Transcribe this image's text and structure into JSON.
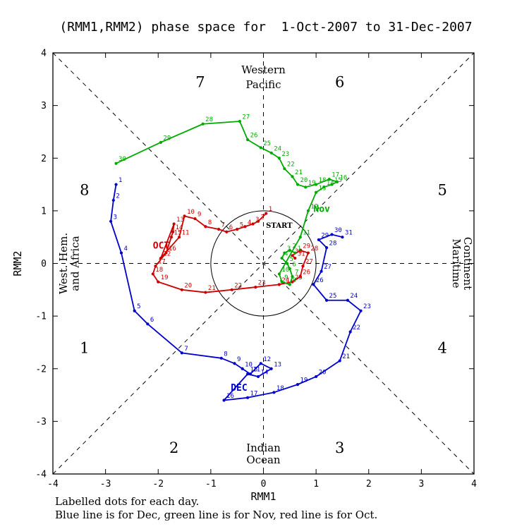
{
  "footer": {
    "line1": "Labelled dots for each day.",
    "line2": "Blue line is for Dec, green line is for Nov, red line is for Oct."
  },
  "chart_data": {
    "type": "line",
    "title": "(RMM1,RMM2) phase space for  1-Oct-2007 to 31-Dec-2007",
    "xlabel": "RMM1",
    "ylabel": "RMM2",
    "xlim": [
      -4,
      4
    ],
    "ylim": [
      -4,
      4
    ],
    "xticks": [
      -4,
      -3,
      -2,
      -1,
      0,
      1,
      2,
      3,
      4
    ],
    "yticks": [
      -4,
      -3,
      -2,
      -1,
      0,
      1,
      2,
      3,
      4
    ],
    "grid": "dashed-phase-guides",
    "unit_circle_radius": 1,
    "start": {
      "text": "START",
      "x": 0.3,
      "y": 0.68
    },
    "phase_labels": [
      {
        "text": "1",
        "x": -3.4,
        "y": -1.6
      },
      {
        "text": "2",
        "x": -1.7,
        "y": -3.5
      },
      {
        "text": "3",
        "x": 1.45,
        "y": -3.5
      },
      {
        "text": "4",
        "x": 3.4,
        "y": -1.6
      },
      {
        "text": "5",
        "x": 3.4,
        "y": 1.4
      },
      {
        "text": "6",
        "x": 1.45,
        "y": 3.45
      },
      {
        "text": "7",
        "x": -1.2,
        "y": 3.45
      },
      {
        "text": "8",
        "x": -3.4,
        "y": 1.4
      }
    ],
    "region_labels": [
      {
        "text": "Western",
        "x": 0,
        "y": 3.68,
        "rotate": 0
      },
      {
        "text": "Pacific",
        "x": 0,
        "y": 3.4,
        "rotate": 0
      },
      {
        "text": "Indian",
        "x": 0,
        "y": -3.5,
        "rotate": 0
      },
      {
        "text": "Ocean",
        "x": 0,
        "y": -3.73,
        "rotate": 0
      },
      {
        "text": "Maritime",
        "x": 3.67,
        "y": 0,
        "rotate": 90
      },
      {
        "text": "Continent",
        "x": 3.88,
        "y": 0,
        "rotate": 90
      },
      {
        "text": "West. Hem.",
        "x": -3.8,
        "y": 0,
        "rotate": -90
      },
      {
        "text": "and Africa",
        "x": -3.58,
        "y": 0,
        "rotate": -90
      }
    ],
    "series": [
      {
        "name": "Oct",
        "color": "#cc0000",
        "label": {
          "text": "OCT",
          "x": -2.1,
          "y": 0.28
        },
        "points": [
          [
            1,
            0.05,
            0.95
          ],
          [
            2,
            -0.1,
            0.8
          ],
          [
            3,
            -0.2,
            0.75
          ],
          [
            4,
            -0.35,
            0.7
          ],
          [
            5,
            -0.5,
            0.65
          ],
          [
            6,
            -0.7,
            0.6
          ],
          [
            7,
            -0.85,
            0.65
          ],
          [
            8,
            -1.1,
            0.7
          ],
          [
            9,
            -1.3,
            0.85
          ],
          [
            10,
            -1.5,
            0.9
          ],
          [
            11,
            -1.6,
            0.5
          ],
          [
            12,
            -1.95,
            0.1
          ],
          [
            13,
            -1.7,
            0.75
          ],
          [
            14,
            -1.72,
            0.6
          ],
          [
            15,
            -1.75,
            0.5
          ],
          [
            16,
            -1.85,
            0.2
          ],
          [
            17,
            -2.05,
            -0.05
          ],
          [
            18,
            -2.1,
            -0.2
          ],
          [
            19,
            -2.0,
            -0.35
          ],
          [
            20,
            -1.55,
            -0.5
          ],
          [
            21,
            -1.1,
            -0.55
          ],
          [
            22,
            -0.6,
            -0.5
          ],
          [
            23,
            -0.15,
            -0.45
          ],
          [
            24,
            0.3,
            -0.4
          ],
          [
            25,
            0.55,
            -0.35
          ],
          [
            26,
            0.7,
            -0.25
          ],
          [
            27,
            0.75,
            -0.05
          ],
          [
            28,
            0.85,
            0.2
          ],
          [
            29,
            0.7,
            0.25
          ],
          [
            30,
            0.55,
            0.15
          ],
          [
            31,
            0.6,
            0.1
          ]
        ]
      },
      {
        "name": "Nov",
        "color": "#00aa00",
        "label": {
          "text": "Nov",
          "x": 0.95,
          "y": 0.98
        },
        "points": [
          [
            1,
            0.6,
            0.2
          ],
          [
            2,
            0.5,
            0.25
          ],
          [
            3,
            0.4,
            0.2
          ],
          [
            4,
            0.35,
            0.1
          ],
          [
            5,
            0.45,
            0.0
          ],
          [
            6,
            0.5,
            -0.1
          ],
          [
            7,
            0.55,
            -0.25
          ],
          [
            8,
            0.5,
            -0.4
          ],
          [
            9,
            0.35,
            -0.35
          ],
          [
            10,
            0.3,
            -0.2
          ],
          [
            11,
            0.7,
            0.5
          ],
          [
            12,
            0.85,
            1.0
          ],
          [
            13,
            1.0,
            1.35
          ],
          [
            14,
            1.15,
            1.45
          ],
          [
            15,
            1.3,
            1.5
          ],
          [
            16,
            1.4,
            1.55
          ],
          [
            17,
            1.25,
            1.6
          ],
          [
            18,
            1.0,
            1.5
          ],
          [
            19,
            0.8,
            1.45
          ],
          [
            20,
            0.65,
            1.5
          ],
          [
            21,
            0.55,
            1.65
          ],
          [
            22,
            0.4,
            1.8
          ],
          [
            23,
            0.3,
            2.0
          ],
          [
            24,
            0.15,
            2.1
          ],
          [
            25,
            -0.05,
            2.2
          ],
          [
            26,
            -0.3,
            2.35
          ],
          [
            27,
            -0.45,
            2.7
          ],
          [
            28,
            -1.15,
            2.65
          ],
          [
            29,
            -1.95,
            2.3
          ],
          [
            30,
            -2.8,
            1.9
          ]
        ]
      },
      {
        "name": "Dec",
        "color": "#0000cc",
        "label": {
          "text": "DEC",
          "x": -0.62,
          "y": -2.42
        },
        "points": [
          [
            1,
            -2.8,
            1.5
          ],
          [
            2,
            -2.85,
            1.2
          ],
          [
            3,
            -2.9,
            0.8
          ],
          [
            4,
            -2.7,
            0.2
          ],
          [
            5,
            -2.45,
            -0.9
          ],
          [
            6,
            -2.2,
            -1.15
          ],
          [
            7,
            -1.55,
            -1.7
          ],
          [
            8,
            -0.8,
            -1.8
          ],
          [
            9,
            -0.55,
            -1.9
          ],
          [
            10,
            -0.4,
            -2.0
          ],
          [
            11,
            -0.25,
            -2.1
          ],
          [
            12,
            -0.05,
            -1.9
          ],
          [
            13,
            0.15,
            -2.0
          ],
          [
            14,
            -0.1,
            -2.15
          ],
          [
            15,
            -0.3,
            -2.1
          ],
          [
            16,
            -0.75,
            -2.6
          ],
          [
            17,
            -0.3,
            -2.55
          ],
          [
            18,
            0.2,
            -2.45
          ],
          [
            19,
            0.65,
            -2.3
          ],
          [
            20,
            1.0,
            -2.15
          ],
          [
            21,
            1.45,
            -1.85
          ],
          [
            22,
            1.65,
            -1.3
          ],
          [
            23,
            1.85,
            -0.9
          ],
          [
            24,
            1.6,
            -0.7
          ],
          [
            25,
            1.2,
            -0.7
          ],
          [
            26,
            0.95,
            -0.4
          ],
          [
            27,
            1.1,
            -0.15
          ],
          [
            28,
            1.2,
            0.3
          ],
          [
            29,
            1.05,
            0.45
          ],
          [
            30,
            1.3,
            0.55
          ],
          [
            31,
            1.5,
            0.5
          ]
        ]
      }
    ]
  }
}
